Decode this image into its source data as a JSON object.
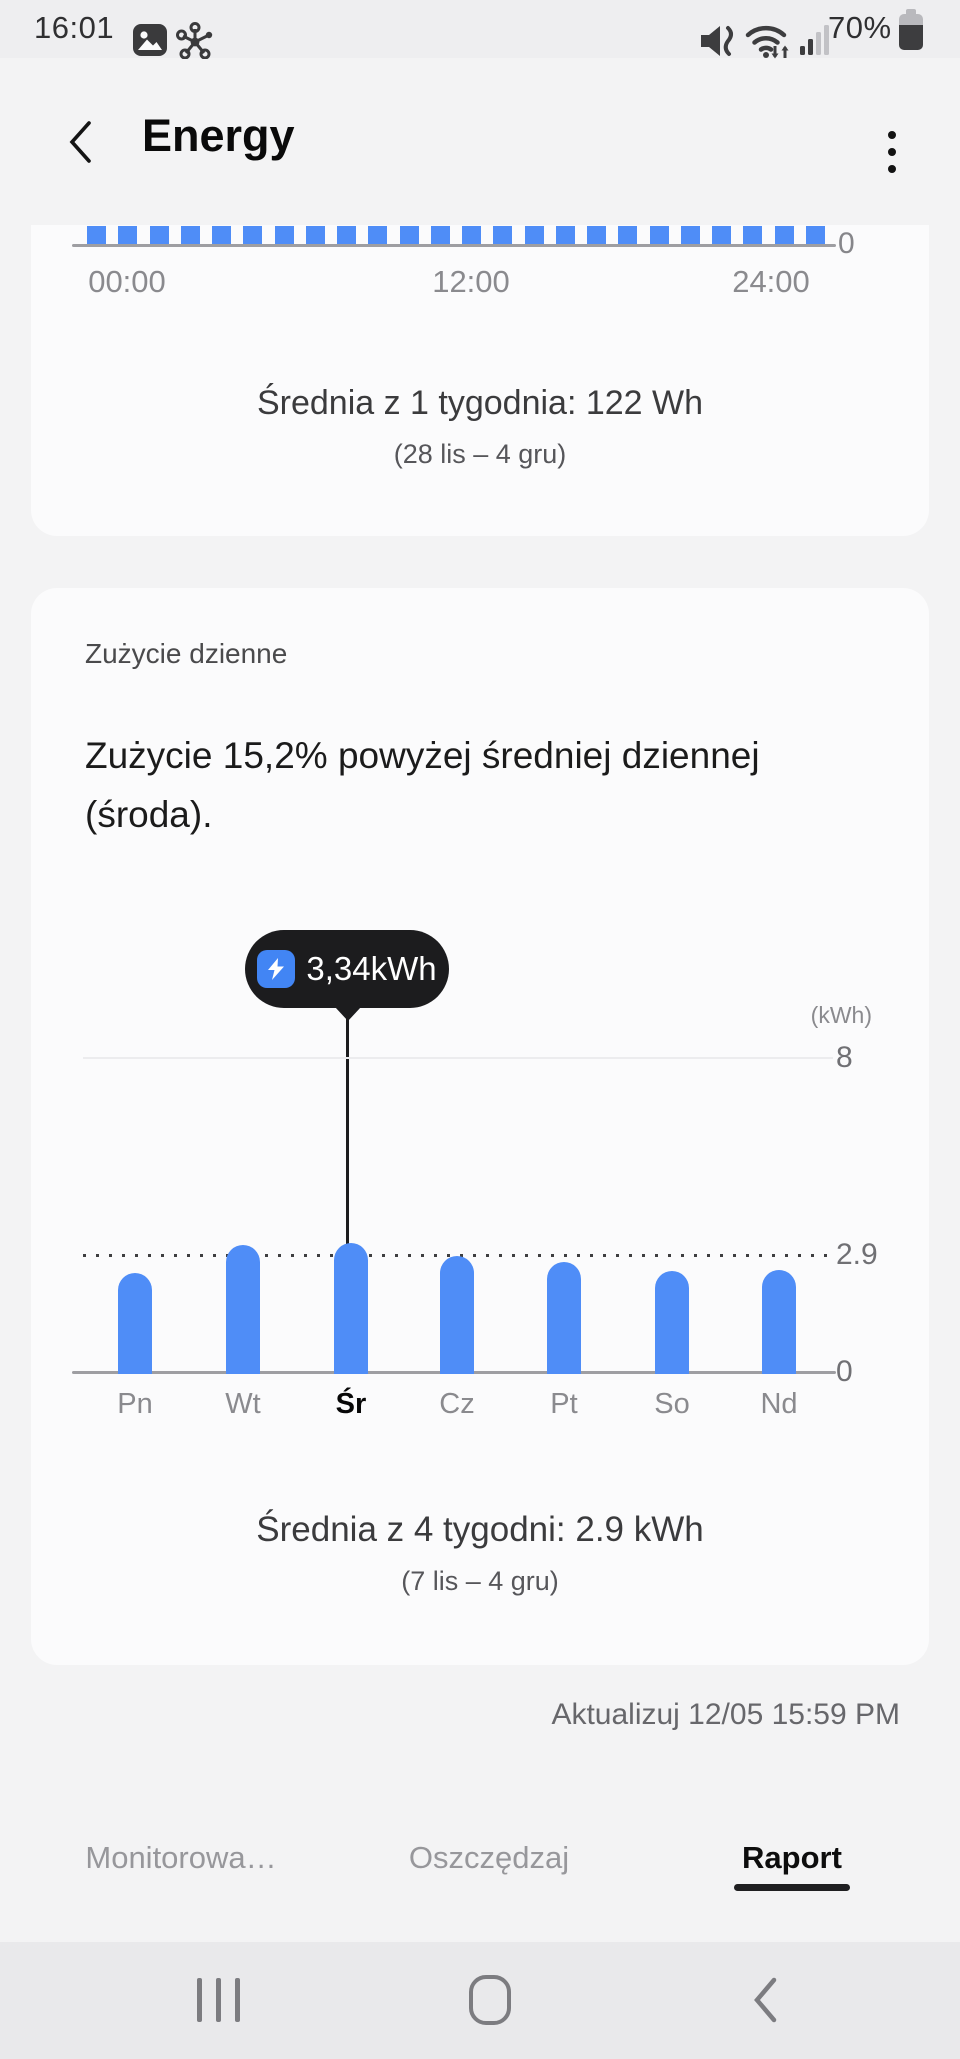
{
  "status_bar": {
    "time": "16:01",
    "battery_percent": "70%",
    "icons": [
      "gallery-icon",
      "smartthings-hub-icon",
      "mute-vibrate-icon",
      "wifi-icon",
      "cellular-signal-icon",
      "battery-icon"
    ]
  },
  "header": {
    "title": "Energy"
  },
  "hourly_card": {
    "y_zero_label": "0",
    "x_labels": [
      "00:00",
      "12:00",
      "24:00"
    ],
    "average_text": "Średnia z 1 tygodnia: 122 Wh",
    "period_text": "(28 lis – 4 gru)"
  },
  "daily_card": {
    "section_label": "Zużycie dzienne",
    "headline_lines": [
      "Zużycie 15,2% powyżej średniej dziennej",
      "(środa)."
    ],
    "tooltip_value": "3,34kWh",
    "axis": {
      "unit": "(kWh)",
      "max": "8",
      "avg": "2.9",
      "zero": "0"
    },
    "average_text": "Średnia z 4 tygodni: 2.9 kWh",
    "period_text": "(7 lis – 4 gru)"
  },
  "footer": {
    "updated": "Aktualizuj 12/05 15:59 PM"
  },
  "tabs": [
    {
      "label": "Monitorowa…",
      "active": false
    },
    {
      "label": "Oszczędzaj",
      "active": false
    },
    {
      "label": "Raport",
      "active": true
    }
  ],
  "colors": {
    "bar_blue": "#4f8df7",
    "tooltip_bg": "#1c1c1e",
    "tooltip_icon_blue": "#4285f4",
    "page_bg": "#f3f3f4",
    "card_bg": "#fbfbfc",
    "nav_bg": "#e9e9eb"
  },
  "chart_data": [
    {
      "type": "bar",
      "x_ticks": [
        "00:00",
        "12:00",
        "24:00"
      ],
      "y_ticks": [
        0
      ],
      "values_kwh": [
        0.122,
        0.122,
        0.122,
        0.122,
        0.122,
        0.122,
        0.122,
        0.122,
        0.122,
        0.122,
        0.122,
        0.122,
        0.122,
        0.122,
        0.122,
        0.122,
        0.122,
        0.122,
        0.122,
        0.122,
        0.122,
        0.122,
        0.122,
        0.122
      ],
      "average_text": "Średnia z 1 tygodnia: 122 Wh",
      "period_text": "(28 lis – 4 gru)",
      "legend": "none",
      "grid": "baseline-only"
    },
    {
      "type": "bar",
      "categories": [
        "Pn",
        "Wt",
        "Śr",
        "Cz",
        "Pt",
        "So",
        "Nd"
      ],
      "values_kwh": [
        2.57,
        3.29,
        3.34,
        3.01,
        2.85,
        2.62,
        2.65
      ],
      "highlight_index": 2,
      "highlight_label": "3,34kWh",
      "average_value": 2.9,
      "ylabel": "(kWh)",
      "y_ticks": [
        0,
        2.9,
        8
      ],
      "ylim": [
        0,
        8.8
      ],
      "average_text": "Średnia z 4 tygodni: 2.9 kWh",
      "period_text": "(7 lis – 4 gru)",
      "legend": "none",
      "grid": "y-8-solid, y-2.9-dotted, baseline"
    }
  ]
}
